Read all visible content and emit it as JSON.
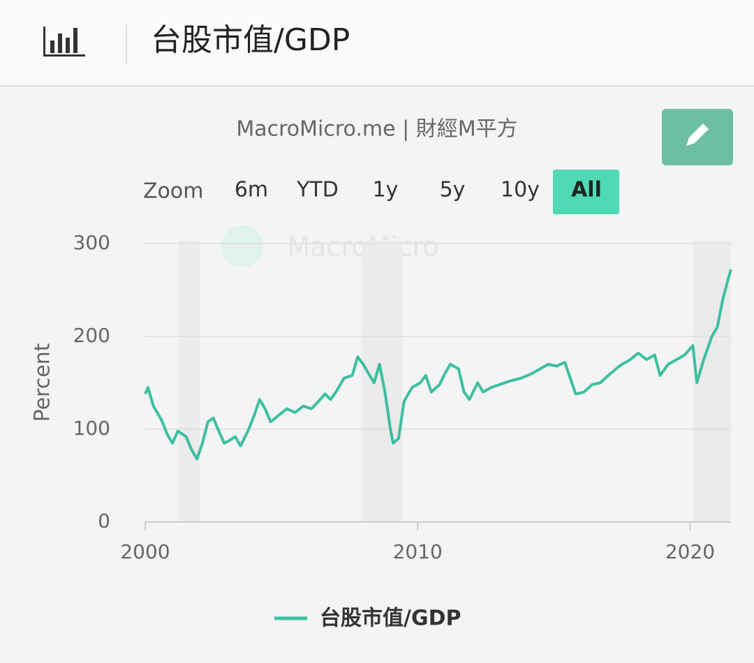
{
  "header": {
    "title": "台股市值/GDP"
  },
  "credit": "MacroMicro.me | 財經M平方",
  "zoom": {
    "label": "Zoom",
    "buttons": [
      "6m",
      "YTD",
      "1y",
      "5y",
      "10y",
      "All"
    ],
    "active": "All"
  },
  "watermark": "MacroMicro",
  "chart_data": {
    "type": "line",
    "y_label": "Percent",
    "xlim": [
      2000,
      2021.5
    ],
    "xticks": [
      2000,
      2010,
      2020
    ],
    "ylim": [
      0,
      300
    ],
    "yticks": [
      0,
      100,
      200,
      300
    ],
    "grid": true,
    "legend": "bottom",
    "series": [
      {
        "name": "台股市值/GDP",
        "color": "#3dbf9f",
        "x": [
          2000.0,
          2000.1,
          2000.3,
          2000.6,
          2000.8,
          2001.0,
          2001.2,
          2001.5,
          2001.7,
          2001.9,
          2002.1,
          2002.3,
          2002.5,
          2002.7,
          2002.9,
          2003.1,
          2003.3,
          2003.5,
          2003.8,
          2004.0,
          2004.2,
          2004.4,
          2004.6,
          2004.9,
          2005.2,
          2005.5,
          2005.8,
          2006.1,
          2006.3,
          2006.6,
          2006.8,
          2007.0,
          2007.3,
          2007.6,
          2007.8,
          2008.0,
          2008.2,
          2008.4,
          2008.6,
          2008.8,
          2009.0,
          2009.1,
          2009.3,
          2009.5,
          2009.8,
          2010.1,
          2010.3,
          2010.5,
          2010.8,
          2011.0,
          2011.2,
          2011.5,
          2011.7,
          2011.9,
          2012.2,
          2012.4,
          2012.7,
          2013.0,
          2013.4,
          2013.8,
          2014.2,
          2014.5,
          2014.8,
          2015.1,
          2015.4,
          2015.6,
          2015.8,
          2016.1,
          2016.4,
          2016.7,
          2017.0,
          2017.4,
          2017.8,
          2018.1,
          2018.4,
          2018.7,
          2018.9,
          2019.2,
          2019.5,
          2019.8,
          2020.1,
          2020.25,
          2020.5,
          2020.8,
          2021.0,
          2021.2,
          2021.4,
          2021.5
        ],
        "values": [
          138,
          145,
          125,
          110,
          95,
          85,
          98,
          92,
          78,
          68,
          85,
          108,
          112,
          98,
          85,
          88,
          92,
          82,
          100,
          115,
          132,
          122,
          108,
          115,
          122,
          118,
          125,
          122,
          128,
          138,
          132,
          140,
          155,
          158,
          178,
          170,
          160,
          150,
          170,
          140,
          100,
          85,
          90,
          130,
          145,
          150,
          158,
          140,
          148,
          160,
          170,
          165,
          140,
          132,
          150,
          140,
          145,
          148,
          152,
          155,
          160,
          165,
          170,
          168,
          172,
          155,
          138,
          140,
          148,
          150,
          158,
          168,
          175,
          182,
          175,
          180,
          158,
          170,
          175,
          180,
          190,
          150,
          175,
          200,
          210,
          240,
          262,
          272
        ]
      }
    ]
  }
}
